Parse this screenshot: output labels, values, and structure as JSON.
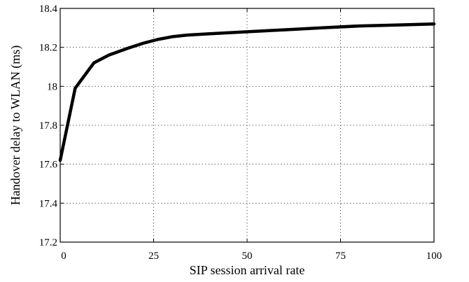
{
  "chart_data": {
    "type": "line",
    "title": "",
    "xlabel": "SIP session arrival rate",
    "ylabel": "Handover delay to WLAN (ms)",
    "xlim": [
      0,
      100
    ],
    "ylim": [
      17.2,
      18.4
    ],
    "x_ticks": [
      0,
      25,
      50,
      75,
      100
    ],
    "x_tick_labels": [
      "0",
      "25",
      "50",
      "75",
      "100"
    ],
    "y_ticks": [
      17.2,
      17.4,
      17.6,
      17.8,
      18.0,
      18.2,
      18.4
    ],
    "y_tick_labels": [
      "17.2",
      "17.4",
      "17.6",
      "17.8",
      "18",
      "18.2",
      "18.4"
    ],
    "grid": true,
    "series": [
      {
        "color": "#000000",
        "x": [
          0,
          4,
          9,
          13,
          18,
          22,
          26,
          30,
          34,
          40,
          50,
          60,
          70,
          80,
          90,
          100
        ],
        "y": [
          17.62,
          17.99,
          18.12,
          18.16,
          18.195,
          18.22,
          18.24,
          18.255,
          18.263,
          18.27,
          18.28,
          18.29,
          18.3,
          18.31,
          18.315,
          18.32
        ]
      }
    ]
  }
}
